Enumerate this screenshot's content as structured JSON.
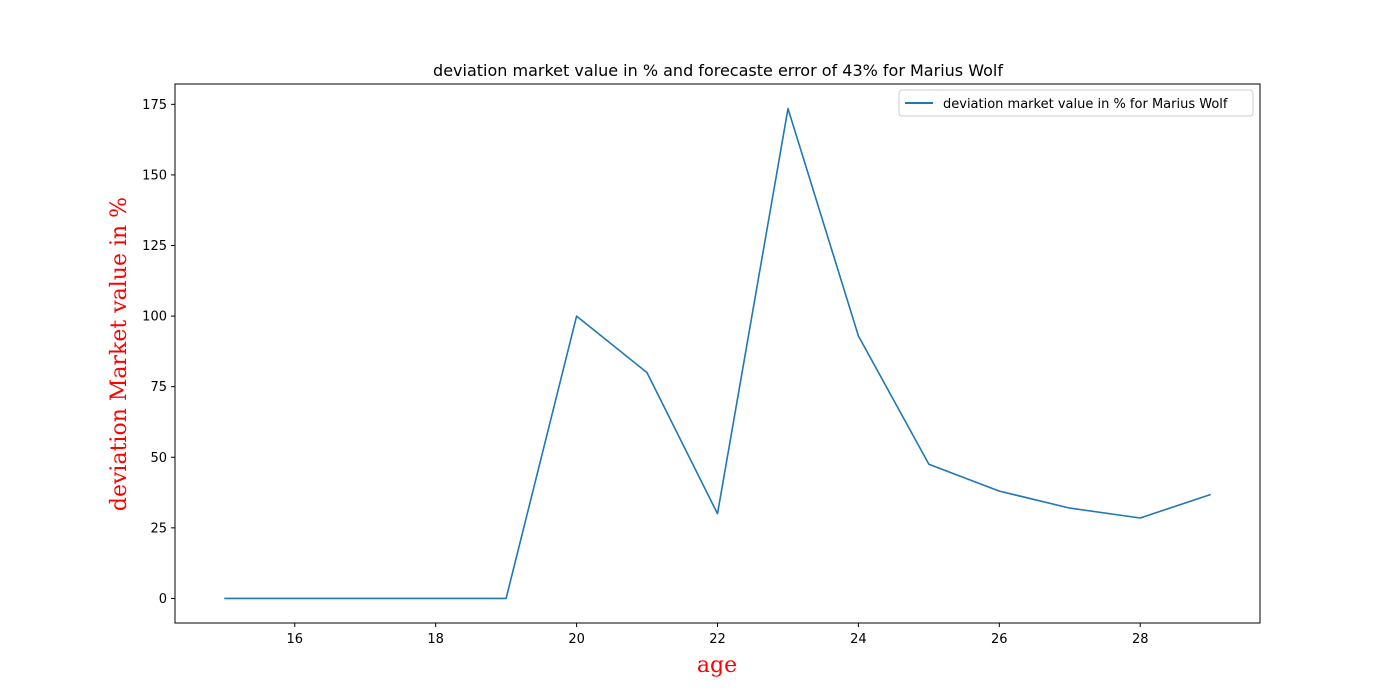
{
  "chart_data": {
    "type": "line",
    "title": "deviation market value in % and forecaste error of 43% for Marius Wolf",
    "xlabel": "age",
    "ylabel": "deviation Market value in %",
    "label_color": "#ff0000",
    "x": [
      15,
      16,
      17,
      18,
      19,
      20,
      21,
      22,
      23,
      24,
      25,
      26,
      27,
      28,
      29
    ],
    "series": [
      {
        "name": "deviation market value in % for Marius Wolf",
        "color": "#1f77b4",
        "values": [
          0,
          0,
          0,
          0,
          0,
          100,
          80,
          30,
          173.5,
          93,
          47.5,
          38,
          32,
          28.5,
          36.8
        ]
      }
    ],
    "xlim": [
      14.3,
      29.7
    ],
    "ylim": [
      -8.7,
      182.2
    ],
    "xticks": [
      16,
      18,
      20,
      22,
      24,
      26,
      28
    ],
    "yticks": [
      0,
      25,
      50,
      75,
      100,
      125,
      150,
      175
    ],
    "legend_position": "upper right",
    "grid": false
  }
}
